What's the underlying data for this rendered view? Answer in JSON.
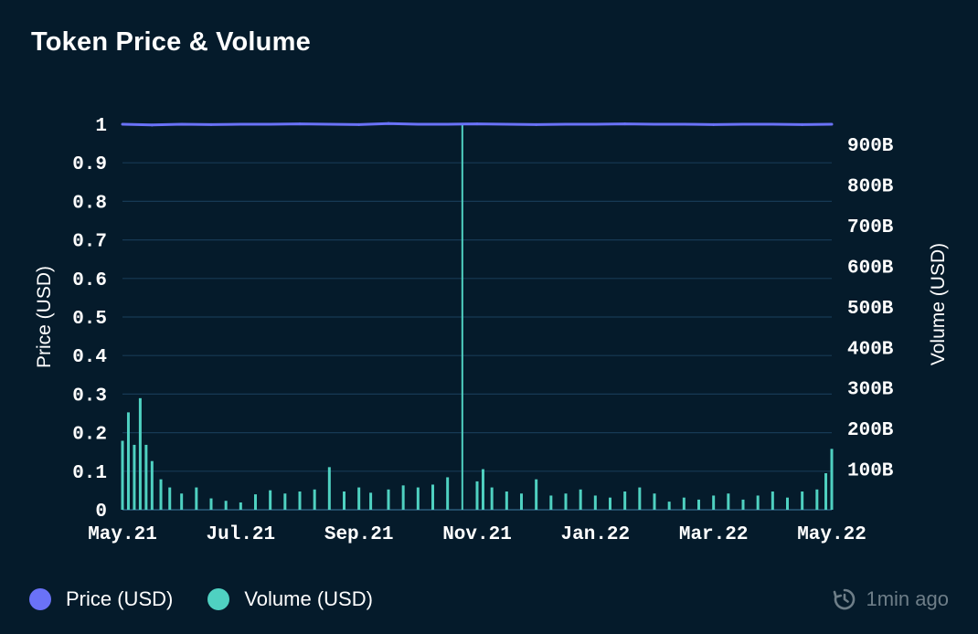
{
  "colors": {
    "background": "#051b2b",
    "price": "#6a72f7",
    "volume": "#4fd1c1",
    "grid": "#173a55",
    "muted": "#6e7e88"
  },
  "legend": {
    "price_label": "Price (USD)",
    "volume_label": "Volume (USD)"
  },
  "status": {
    "updated_text": "1min ago",
    "icon": "refresh-clock-icon"
  },
  "chart_data": {
    "type": "line+bar",
    "title": "Token Price & Volume",
    "xlabel": "",
    "ylabel_left": "Price (USD)",
    "ylabel_right": "Volume (USD)",
    "x_ticks": [
      "May.21",
      "Jul.21",
      "Sep.21",
      "Nov.21",
      "Jan.22",
      "Mar.22",
      "May.22"
    ],
    "y_left_ticks": [
      "0",
      "0.1",
      "0.2",
      "0.3",
      "0.4",
      "0.5",
      "0.6",
      "0.7",
      "0.8",
      "0.9",
      "1"
    ],
    "y_right_ticks": [
      "100B",
      "200B",
      "300B",
      "400B",
      "500B",
      "600B",
      "700B",
      "800B",
      "900B"
    ],
    "ylim_left": [
      0,
      1
    ],
    "ylim_right": [
      0,
      950
    ],
    "grid": true,
    "legend_position": "bottom-left",
    "series": [
      {
        "name": "Price (USD)",
        "type": "line",
        "axis": "left",
        "unit": "USD",
        "x_month_index": [
          0,
          0.5,
          1,
          1.5,
          2,
          2.5,
          3,
          3.5,
          4,
          4.5,
          5,
          5.5,
          6,
          6.5,
          7,
          7.5,
          8,
          8.5,
          9,
          9.5,
          10,
          10.5,
          11,
          11.5,
          12
        ],
        "values": [
          1.0,
          0.998,
          1.0,
          0.999,
          1.0,
          1.0,
          1.001,
          1.0,
          0.999,
          1.002,
          1.0,
          1.0,
          1.001,
          1.0,
          0.999,
          1.0,
          1.0,
          1.001,
          1.0,
          1.0,
          0.999,
          1.0,
          1.0,
          0.999,
          1.0
        ]
      },
      {
        "name": "Volume (USD)",
        "type": "bar",
        "axis": "right",
        "unit": "B USD",
        "x_month_index": [
          0,
          0.1,
          0.2,
          0.3,
          0.4,
          0.5,
          0.65,
          0.8,
          1,
          1.25,
          1.5,
          1.75,
          2,
          2.25,
          2.5,
          2.75,
          3,
          3.25,
          3.5,
          3.75,
          4,
          4.2,
          4.5,
          4.75,
          5,
          5.25,
          5.5,
          5.75,
          6,
          6.1,
          6.25,
          6.5,
          6.75,
          7,
          7.25,
          7.5,
          7.75,
          8,
          8.25,
          8.5,
          8.75,
          9,
          9.25,
          9.5,
          9.75,
          10,
          10.25,
          10.5,
          10.75,
          11,
          11.25,
          11.5,
          11.75,
          11.9,
          12
        ],
        "values": [
          170,
          240,
          160,
          275,
          160,
          120,
          75,
          55,
          40,
          55,
          28,
          22,
          18,
          38,
          48,
          40,
          45,
          50,
          105,
          45,
          55,
          42,
          50,
          60,
          55,
          62,
          80,
          950,
          70,
          100,
          55,
          45,
          40,
          75,
          35,
          40,
          50,
          35,
          30,
          45,
          55,
          40,
          20,
          30,
          25,
          35,
          40,
          25,
          35,
          45,
          30,
          45,
          50,
          90,
          150
        ]
      }
    ]
  }
}
